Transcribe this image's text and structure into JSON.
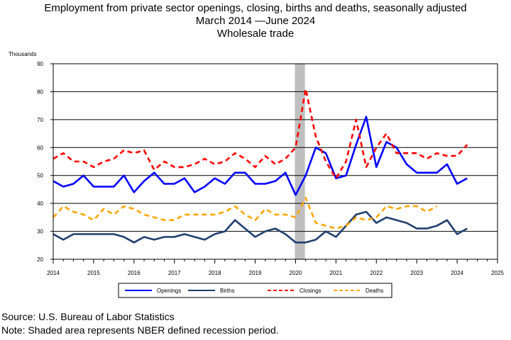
{
  "titles": {
    "line1": "Employment from private sector openings, closing, births and deaths, seasonally adjusted",
    "line2": "March 2014 —June 2024",
    "line3": "Wholesale trade"
  },
  "unit_label": "Thousands",
  "footnotes": {
    "source": "Source: U.S. Bureau of Labor Statistics",
    "note": "Note: Shaded area represents NBER defined recession period."
  },
  "chart_data": {
    "type": "line",
    "title": "Employment from private sector openings, closing, births and deaths, seasonally adjusted",
    "subtitle": "March 2014 —June 2024 Wholesale trade",
    "xlabel": "",
    "ylabel": "Thousands",
    "xlim": [
      2014,
      2025
    ],
    "ylim": [
      20,
      90
    ],
    "x_ticks": [
      "2014",
      "2015",
      "2016",
      "2017",
      "2018",
      "2019",
      "2020",
      "2021",
      "2022",
      "2023",
      "2024",
      "2025"
    ],
    "y_ticks": [
      20,
      30,
      40,
      50,
      60,
      70,
      80,
      90
    ],
    "grid": "horizontal",
    "legend": "bottom",
    "recession_shading": {
      "start": "2020Q1",
      "end": "2020Q2"
    },
    "x": [
      "2014Q1",
      "2014Q2",
      "2014Q3",
      "2014Q4",
      "2015Q1",
      "2015Q2",
      "2015Q3",
      "2015Q4",
      "2016Q1",
      "2016Q2",
      "2016Q3",
      "2016Q4",
      "2017Q1",
      "2017Q2",
      "2017Q3",
      "2017Q4",
      "2018Q1",
      "2018Q2",
      "2018Q3",
      "2018Q4",
      "2019Q1",
      "2019Q2",
      "2019Q3",
      "2019Q4",
      "2020Q1",
      "2020Q2",
      "2020Q3",
      "2020Q4",
      "2021Q1",
      "2021Q2",
      "2021Q3",
      "2021Q4",
      "2022Q1",
      "2022Q2",
      "2022Q3",
      "2022Q4",
      "2023Q1",
      "2023Q2",
      "2023Q3",
      "2023Q4",
      "2024Q1",
      "2024Q2"
    ],
    "series": [
      {
        "name": "Openings",
        "color": "#0000ff",
        "dash": "solid",
        "values": [
          48,
          46,
          47,
          50,
          46,
          46,
          46,
          50,
          44,
          48,
          51,
          47,
          47,
          49,
          44,
          46,
          49,
          47,
          51,
          51,
          47,
          47,
          48,
          51,
          43,
          50,
          60,
          58,
          49,
          50,
          61,
          71,
          53,
          62,
          60,
          54,
          51,
          51,
          51,
          54,
          47,
          49
        ]
      },
      {
        "name": "Births",
        "color": "#1f3f6e",
        "dash": "solid",
        "values": [
          29,
          27,
          29,
          29,
          29,
          29,
          29,
          28,
          26,
          28,
          27,
          28,
          28,
          29,
          28,
          27,
          29,
          30,
          34,
          31,
          28,
          30,
          31,
          29,
          26,
          26,
          27,
          30,
          28,
          32,
          36,
          37,
          33,
          35,
          34,
          33,
          31,
          31,
          32,
          34,
          29,
          31
        ]
      },
      {
        "name": "Closings",
        "color": "#ff0000",
        "dash": "dashed",
        "values": [
          56,
          58,
          55,
          55,
          53,
          55,
          56,
          59,
          58,
          59,
          52,
          55,
          53,
          53,
          54,
          56,
          54,
          55,
          58,
          56,
          53,
          57,
          54,
          56,
          60,
          81,
          64,
          55,
          49,
          55,
          70,
          53,
          60,
          65,
          58,
          58,
          58,
          56,
          58,
          57,
          57,
          61
        ]
      },
      {
        "name": "Deaths",
        "color": "#ffa500",
        "dash": "dashed",
        "values": [
          35,
          39,
          37,
          36,
          34,
          38,
          36,
          39,
          38,
          36,
          35,
          34,
          34,
          36,
          36,
          36,
          36,
          37,
          39,
          36,
          34,
          38,
          36,
          36,
          35,
          42,
          33,
          32,
          31,
          32,
          35,
          34,
          35,
          39,
          38,
          39,
          39,
          37,
          39,
          null,
          null,
          null
        ]
      }
    ]
  }
}
